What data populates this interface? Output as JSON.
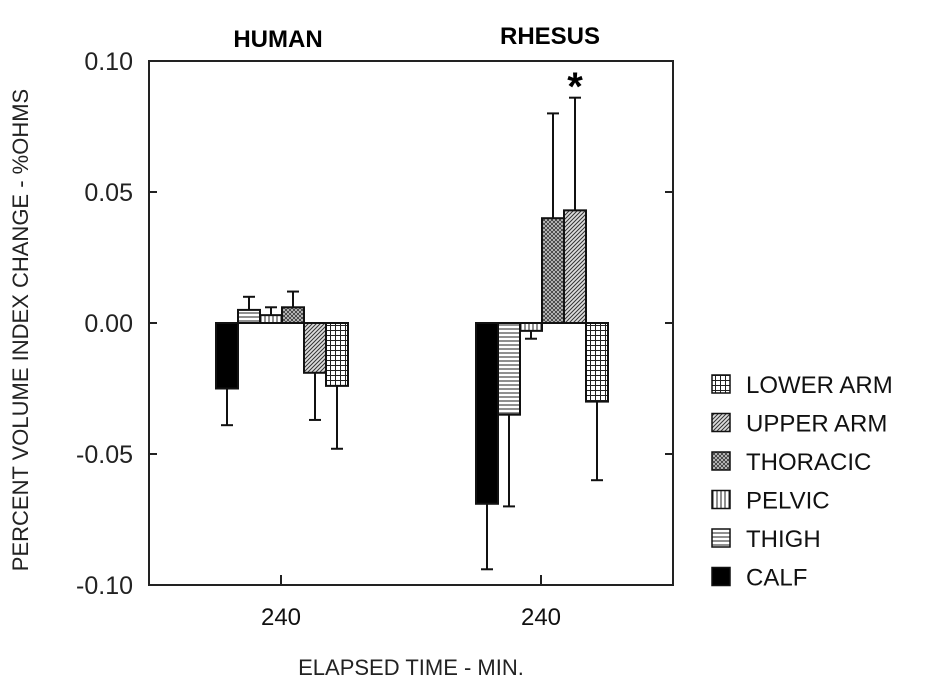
{
  "chart_data": {
    "type": "bar",
    "title": "",
    "group_labels": [
      "HUMAN",
      "RHESUS"
    ],
    "categories": [
      "240",
      "240"
    ],
    "xlabel": "ELAPSED TIME - MIN.",
    "ylabel": "PERCENT VOLUME INDEX CHANGE - %OHMS",
    "ylim": [
      -0.1,
      0.1
    ],
    "yticks": [
      "0.10",
      "0.05",
      "0.00",
      "-0.05",
      "-0.10"
    ],
    "grid": false,
    "legend_position": "right",
    "legend": [
      "LOWER ARM",
      "UPPER ARM",
      "THORACIC",
      "PELVIC",
      "THIGH",
      "CALF"
    ],
    "bar_order": [
      "CALF",
      "THIGH",
      "PELVIC",
      "THORACIC",
      "UPPER ARM",
      "LOWER ARM"
    ],
    "series": [
      {
        "name": "CALF",
        "values": [
          -0.025,
          -0.069
        ],
        "error": [
          0.014,
          0.025
        ]
      },
      {
        "name": "THIGH",
        "values": [
          0.005,
          -0.035
        ],
        "error": [
          0.005,
          0.035
        ]
      },
      {
        "name": "PELVIC",
        "values": [
          0.003,
          -0.003
        ],
        "error": [
          0.003,
          0.003
        ]
      },
      {
        "name": "THORACIC",
        "values": [
          0.006,
          0.04
        ],
        "error": [
          0.006,
          0.04
        ]
      },
      {
        "name": "UPPER ARM",
        "values": [
          -0.019,
          0.043
        ],
        "error": [
          0.018,
          0.043
        ]
      },
      {
        "name": "LOWER ARM",
        "values": [
          -0.024,
          -0.03
        ],
        "error": [
          0.024,
          0.03
        ]
      }
    ],
    "annotations": [
      {
        "text": "*",
        "target": "RHESUS UPPER ARM"
      }
    ]
  }
}
